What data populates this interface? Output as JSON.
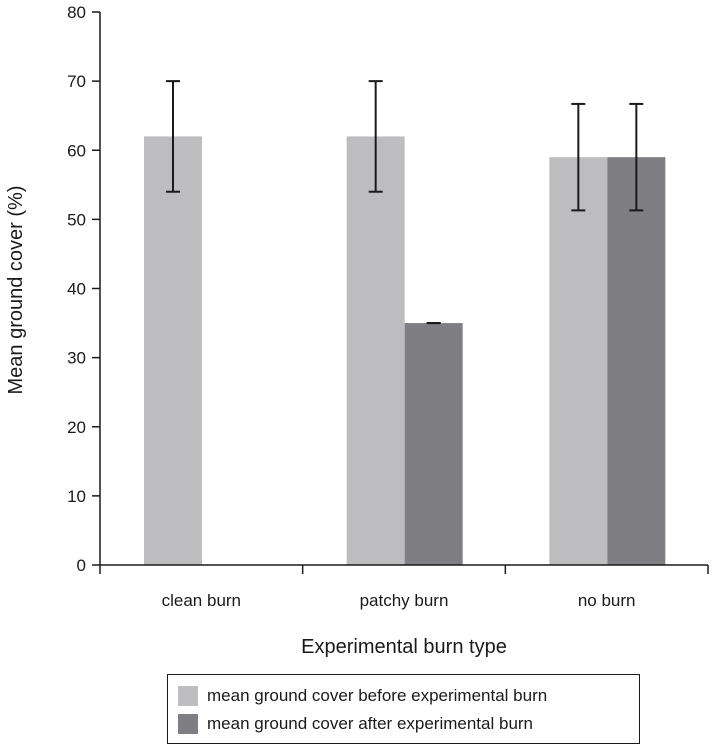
{
  "chart_data": {
    "type": "bar",
    "categories": [
      "clean burn",
      "patchy burn",
      "no burn"
    ],
    "series": [
      {
        "name": "mean ground cover before experimental burn",
        "color": "#bdbdbf",
        "values": [
          62,
          62,
          59
        ],
        "error": [
          8,
          8,
          7.7
        ]
      },
      {
        "name": "mean ground cover after experimental burn",
        "color": "#7f7f83",
        "values": [
          null,
          35,
          59
        ],
        "error": [
          null,
          0,
          7.7
        ]
      }
    ],
    "title": "",
    "xlabel": "Experimental burn type",
    "ylabel": "Mean ground cover (%)",
    "ylim": [
      0,
      80
    ],
    "yticks": [
      0,
      10,
      20,
      30,
      40,
      50,
      60,
      70,
      80
    ],
    "grid": false,
    "legend_position": "bottom"
  }
}
